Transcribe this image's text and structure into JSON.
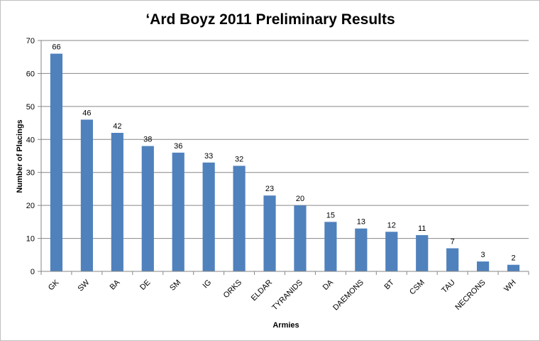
{
  "chart_data": {
    "type": "bar",
    "title": "‘Ard Boyz 2011 Preliminary Results",
    "xlabel": "Armies",
    "ylabel": "Number of Placings",
    "categories": [
      "GK",
      "SW",
      "BA",
      "DE",
      "SM",
      "IG",
      "ORKS",
      "ELDAR",
      "TYRANIDS",
      "DA",
      "DAEMONS",
      "BT",
      "CSM",
      "TAU",
      "NECRONS",
      "WH"
    ],
    "values": [
      66,
      46,
      42,
      38,
      36,
      33,
      32,
      23,
      20,
      15,
      13,
      12,
      11,
      7,
      3,
      2
    ],
    "ylim": [
      0,
      70
    ],
    "yticks": [
      0,
      10,
      20,
      30,
      40,
      50,
      60,
      70
    ],
    "grid": true,
    "legend": "none",
    "bar_color": "#4f81bd",
    "grid_color": "#868686"
  }
}
